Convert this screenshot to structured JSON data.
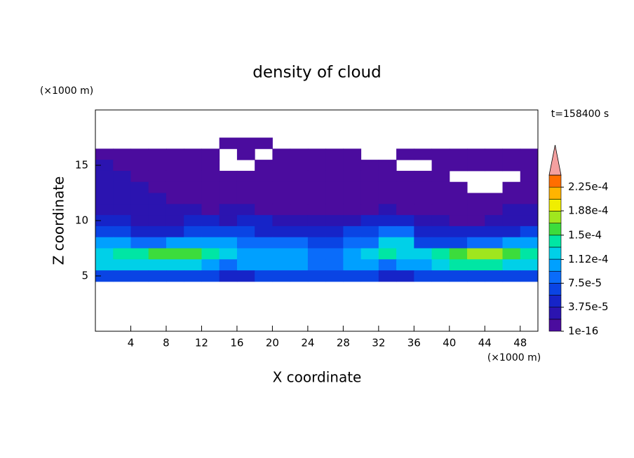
{
  "chart_data": {
    "type": "contour",
    "title": "density of cloud",
    "xlabel": "X coordinate",
    "ylabel": "Z coordinate",
    "x_unit": "(×1000 m)",
    "y_unit": "(×1000 m)",
    "annotation": "t=158400 s",
    "xlim": [
      0,
      50
    ],
    "ylim": [
      0,
      20
    ],
    "xticks": [
      4,
      8,
      12,
      16,
      20,
      24,
      28,
      32,
      36,
      40,
      44,
      48
    ],
    "yticks": [
      5,
      10,
      15
    ],
    "x": [
      1,
      3,
      5,
      7,
      9,
      11,
      13,
      15,
      17,
      19,
      21,
      23,
      25,
      27,
      29,
      31,
      33,
      35,
      37,
      39,
      41,
      43,
      45,
      47,
      49
    ],
    "z": [
      17,
      16,
      15,
      14,
      13,
      12,
      11,
      10,
      9,
      8,
      7,
      6,
      5
    ],
    "values": [
      [
        null,
        null,
        null,
        null,
        null,
        null,
        null,
        9.4e-06,
        9.4e-06,
        9.4e-06,
        null,
        null,
        null,
        null,
        null,
        null,
        null,
        null,
        null,
        null,
        null,
        null,
        null,
        null,
        null
      ],
      [
        9.4e-06,
        9.4e-06,
        9.4e-06,
        9.4e-06,
        9.4e-06,
        9.4e-06,
        9.4e-06,
        null,
        9.4e-06,
        null,
        9.4e-06,
        9.4e-06,
        9.4e-06,
        9.4e-06,
        9.4e-06,
        null,
        null,
        9.4e-06,
        9.4e-06,
        9.4e-06,
        9.4e-06,
        9.4e-06,
        9.4e-06,
        9.4e-06,
        9.4e-06
      ],
      [
        2.8e-05,
        9.4e-06,
        9.4e-06,
        9.4e-06,
        9.4e-06,
        9.4e-06,
        9.4e-06,
        null,
        null,
        9.4e-06,
        9.4e-06,
        9.4e-06,
        9.4e-06,
        9.4e-06,
        9.4e-06,
        9.4e-06,
        9.4e-06,
        null,
        null,
        9.4e-06,
        9.4e-06,
        9.4e-06,
        9.4e-06,
        9.4e-06,
        9.4e-06
      ],
      [
        2.8e-05,
        2.8e-05,
        9.4e-06,
        9.4e-06,
        9.4e-06,
        9.4e-06,
        9.4e-06,
        9.4e-06,
        9.4e-06,
        9.4e-06,
        9.4e-06,
        9.4e-06,
        9.4e-06,
        9.4e-06,
        9.4e-06,
        9.4e-06,
        9.4e-06,
        9.4e-06,
        9.4e-06,
        9.4e-06,
        null,
        null,
        null,
        null,
        9.4e-06
      ],
      [
        2.8e-05,
        2.8e-05,
        2.8e-05,
        9.4e-06,
        9.4e-06,
        9.4e-06,
        9.4e-06,
        9.4e-06,
        9.4e-06,
        9.4e-06,
        9.4e-06,
        9.4e-06,
        9.4e-06,
        9.4e-06,
        9.4e-06,
        9.4e-06,
        9.4e-06,
        9.4e-06,
        9.4e-06,
        9.4e-06,
        9.4e-06,
        null,
        null,
        9.4e-06,
        9.4e-06
      ],
      [
        2.8e-05,
        2.8e-05,
        2.8e-05,
        2.8e-05,
        9.4e-06,
        9.4e-06,
        9.4e-06,
        9.4e-06,
        9.4e-06,
        9.4e-06,
        9.4e-06,
        9.4e-06,
        9.4e-06,
        9.4e-06,
        9.4e-06,
        9.4e-06,
        9.4e-06,
        9.4e-06,
        9.4e-06,
        9.4e-06,
        9.4e-06,
        9.4e-06,
        9.4e-06,
        9.4e-06,
        9.4e-06
      ],
      [
        2.8e-05,
        2.8e-05,
        2.8e-05,
        2.8e-05,
        2.8e-05,
        2.8e-05,
        9.4e-06,
        2.8e-05,
        2.8e-05,
        9.4e-06,
        9.4e-06,
        9.4e-06,
        9.4e-06,
        9.4e-06,
        9.4e-06,
        9.4e-06,
        2.8e-05,
        9.4e-06,
        9.4e-06,
        9.4e-06,
        9.4e-06,
        9.4e-06,
        9.4e-06,
        2.8e-05,
        2.8e-05
      ],
      [
        4.7e-05,
        4.7e-05,
        2.8e-05,
        2.8e-05,
        2.8e-05,
        4.7e-05,
        4.7e-05,
        2.8e-05,
        4.7e-05,
        4.7e-05,
        2.8e-05,
        2.8e-05,
        2.8e-05,
        2.8e-05,
        2.8e-05,
        4.7e-05,
        4.7e-05,
        4.7e-05,
        2.8e-05,
        2.8e-05,
        9.4e-06,
        9.4e-06,
        2.8e-05,
        2.8e-05,
        2.8e-05
      ],
      [
        6.6e-05,
        6.6e-05,
        4.7e-05,
        4.7e-05,
        4.7e-05,
        6.6e-05,
        6.6e-05,
        6.6e-05,
        6.6e-05,
        4.7e-05,
        4.7e-05,
        4.7e-05,
        4.7e-05,
        4.7e-05,
        6.6e-05,
        6.6e-05,
        8.4e-05,
        8.4e-05,
        4.7e-05,
        4.7e-05,
        4.7e-05,
        4.7e-05,
        4.7e-05,
        4.7e-05,
        6.6e-05
      ],
      [
        0.000103,
        0.000103,
        8.4e-05,
        8.4e-05,
        0.000103,
        0.000103,
        0.000103,
        0.000103,
        8.4e-05,
        8.4e-05,
        8.4e-05,
        8.4e-05,
        6.6e-05,
        6.6e-05,
        8.4e-05,
        8.4e-05,
        0.000122,
        0.000122,
        6.6e-05,
        6.6e-05,
        6.6e-05,
        8.4e-05,
        8.4e-05,
        0.000103,
        0.000103
      ],
      [
        0.000122,
        0.000141,
        0.000141,
        0.000159,
        0.000159,
        0.000159,
        0.000141,
        0.000122,
        0.000103,
        0.000103,
        0.000103,
        0.000103,
        8.4e-05,
        8.4e-05,
        0.000103,
        0.000122,
        0.000141,
        0.000122,
        0.000122,
        0.000141,
        0.000159,
        0.000178,
        0.000178,
        0.000159,
        0.000141
      ],
      [
        0.000122,
        0.000122,
        0.000122,
        0.000122,
        0.000122,
        0.000122,
        0.000103,
        8.4e-05,
        0.000103,
        0.000103,
        0.000103,
        0.000103,
        8.4e-05,
        8.4e-05,
        0.000103,
        0.000103,
        8.4e-05,
        0.000103,
        0.000103,
        0.000122,
        0.000141,
        0.000141,
        0.000141,
        0.000122,
        0.000122
      ],
      [
        6.6e-05,
        6.6e-05,
        6.6e-05,
        6.6e-05,
        6.6e-05,
        6.6e-05,
        6.6e-05,
        4.7e-05,
        4.7e-05,
        6.6e-05,
        6.6e-05,
        6.6e-05,
        6.6e-05,
        6.6e-05,
        6.6e-05,
        6.6e-05,
        4.7e-05,
        4.7e-05,
        6.6e-05,
        6.6e-05,
        6.6e-05,
        6.6e-05,
        6.6e-05,
        6.6e-05,
        6.6e-05
      ]
    ],
    "levels": [
      1e-16,
      1.875e-05,
      3.75e-05,
      5.625e-05,
      7.5e-05,
      9.375e-05,
      0.000112,
      0.00013125,
      0.00015,
      0.00016875,
      0.000188,
      0.00020625,
      0.000225,
      0.00024375
    ],
    "level_colors": [
      "#4b0c9e",
      "#2b14b0",
      "#1624c8",
      "#0a44e4",
      "#0a6cfa",
      "#00a0ff",
      "#00d0e8",
      "#00e6a4",
      "#3cdc3c",
      "#a0e61e",
      "#f0ee00",
      "#ffb400",
      "#ff6e00",
      "#ff2814"
    ],
    "extend_color": "#f4a0a0",
    "colorbar_ticks": [
      {
        "value": 1e-16,
        "label": "1e-16"
      },
      {
        "value": 3.75e-05,
        "label": "3.75e-5"
      },
      {
        "value": 7.5e-05,
        "label": "7.5e-5"
      },
      {
        "value": 0.000112,
        "label": "1.12e-4"
      },
      {
        "value": 0.00015,
        "label": "1.5e-4"
      },
      {
        "value": 0.000188,
        "label": "1.88e-4"
      },
      {
        "value": 0.000225,
        "label": "2.25e-4"
      }
    ]
  }
}
